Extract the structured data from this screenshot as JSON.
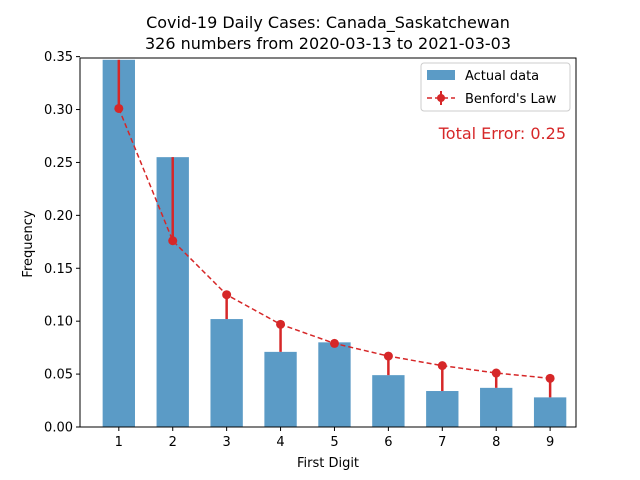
{
  "chart_data": {
    "type": "bar",
    "title": "Covid-19 Daily Cases: Canada_Saskatchewan",
    "subtitle": "326 numbers from 2020-03-13 to 2021-03-03",
    "xlabel": "First Digit",
    "ylabel": "Frequency",
    "categories": [
      "1",
      "2",
      "3",
      "4",
      "5",
      "6",
      "7",
      "8",
      "9"
    ],
    "ylim": [
      0,
      0.35
    ],
    "yticks": [
      "0.00",
      "0.05",
      "0.10",
      "0.15",
      "0.20",
      "0.25",
      "0.30",
      "0.35"
    ],
    "series": [
      {
        "name": "Actual data",
        "kind": "bar",
        "color": "#5b9bc6",
        "values": [
          0.347,
          0.255,
          0.102,
          0.071,
          0.08,
          0.049,
          0.034,
          0.037,
          0.028
        ]
      },
      {
        "name": "Benford's Law",
        "kind": "line",
        "color": "#d62728",
        "values": [
          0.301,
          0.176,
          0.125,
          0.097,
          0.079,
          0.067,
          0.058,
          0.051,
          0.046
        ]
      }
    ],
    "annotation": "Total Error: 0.25",
    "legend_position": "top-right",
    "grid": false
  }
}
